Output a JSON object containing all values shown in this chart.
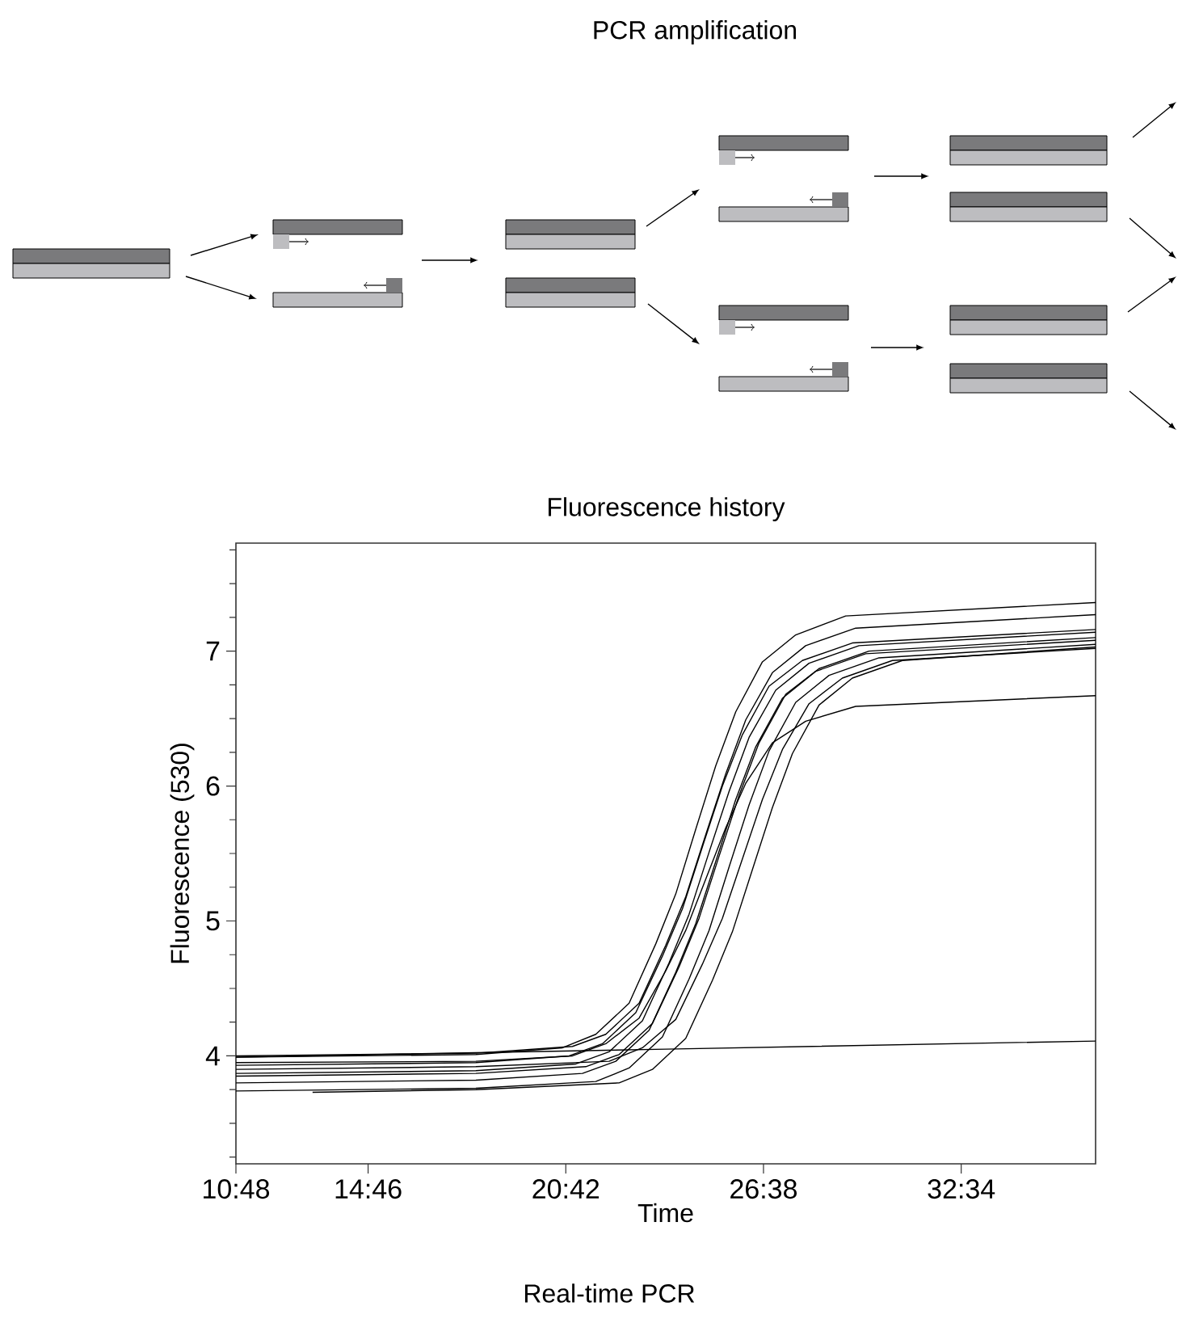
{
  "chart_data": {
    "type": "line",
    "title": "Fluorescence history",
    "xlabel": "Time",
    "ylabel": "Fluorescence (530)",
    "annotations": [
      "PCR amplification",
      "Real-time PCR"
    ],
    "xlim": [
      10.8,
      36.6
    ],
    "ylim": [
      3.2,
      7.8
    ],
    "xticks": [
      {
        "value": 10.8,
        "label": "10:48"
      },
      {
        "value": 14.767,
        "label": "14:46"
      },
      {
        "value": 20.7,
        "label": "20:42"
      },
      {
        "value": 26.633,
        "label": "26:38"
      },
      {
        "value": 32.567,
        "label": "32:34"
      }
    ],
    "yticks": [
      4,
      5,
      6,
      7
    ],
    "marker": "none",
    "line_style": "solid",
    "series": [
      {
        "color": "#000000",
        "x": [
          10.8,
          18,
          20.6,
          21.6,
          22.6,
          23.4,
          24,
          24.6,
          25.2,
          25.8,
          26.6,
          27.6,
          29.1,
          36.6
        ],
        "values": [
          3.99,
          4.01,
          4.06,
          4.16,
          4.39,
          4.83,
          5.2,
          5.68,
          6.15,
          6.55,
          6.92,
          7.12,
          7.26,
          7.36
        ]
      },
      {
        "color": "#000000",
        "x": [
          10.8,
          18,
          20.9,
          21.9,
          22.9,
          23.7,
          24.3,
          24.9,
          25.5,
          26.1,
          26.9,
          27.9,
          29.4,
          36.6
        ],
        "values": [
          4.0,
          4.02,
          4.07,
          4.16,
          4.39,
          4.82,
          5.18,
          5.64,
          6.09,
          6.49,
          6.84,
          7.04,
          7.17,
          7.27
        ]
      },
      {
        "color": "#000000",
        "x": [
          10.8,
          18,
          20.8,
          21.8,
          22.8,
          23.6,
          24.2,
          24.8,
          25.4,
          26.0,
          26.8,
          27.8,
          29.3,
          36.6
        ],
        "values": [
          3.93,
          3.95,
          4.0,
          4.09,
          4.32,
          4.74,
          5.09,
          5.55,
          6.0,
          6.38,
          6.74,
          6.93,
          7.06,
          7.16
        ]
      },
      {
        "color": "#000000",
        "x": [
          10.8,
          18,
          21,
          22,
          23,
          23.8,
          24.4,
          25,
          25.6,
          26.2,
          27,
          28,
          29.5,
          36.6
        ],
        "values": [
          3.87,
          3.89,
          3.94,
          4.03,
          4.26,
          4.69,
          5.05,
          5.51,
          5.96,
          6.36,
          6.71,
          6.91,
          7.04,
          7.14
        ]
      },
      {
        "color": "#000000",
        "x": [
          10.8,
          18,
          21.3,
          22.3,
          23.3,
          24.1,
          24.7,
          25.3,
          25.9,
          26.5,
          27.3,
          28.3,
          29.8,
          36.6
        ],
        "values": [
          3.85,
          3.87,
          3.92,
          4.01,
          4.24,
          4.66,
          5.02,
          5.48,
          5.93,
          6.32,
          6.68,
          6.87,
          7.0,
          7.1
        ]
      },
      {
        "color": "#000000",
        "x": [
          10.8,
          18,
          21.2,
          22.2,
          23.2,
          24,
          24.6,
          25.2,
          25.8,
          26.4,
          27.2,
          28.2,
          29.7,
          36.6
        ],
        "values": [
          3.8,
          3.82,
          3.87,
          3.96,
          4.19,
          4.62,
          4.98,
          5.44,
          5.9,
          6.29,
          6.65,
          6.85,
          6.98,
          7.08
        ]
      },
      {
        "color": "#000000",
        "x": [
          10.8,
          18,
          21.6,
          22.6,
          23.6,
          24.4,
          25,
          25.6,
          26.2,
          26.8,
          27.6,
          28.6,
          30.1,
          36.6
        ],
        "values": [
          3.74,
          3.76,
          3.81,
          3.91,
          4.14,
          4.57,
          4.93,
          5.4,
          5.86,
          6.26,
          6.62,
          6.82,
          6.95,
          7.05
        ]
      },
      {
        "color": "#000000",
        "x": [
          13.1,
          18,
          22.3,
          23.3,
          24.3,
          25.1,
          25.7,
          26.3,
          26.9,
          27.5,
          28.3,
          29.3,
          30.8,
          36.6
        ],
        "values": [
          3.73,
          3.75,
          3.8,
          3.9,
          4.13,
          4.56,
          4.92,
          5.38,
          5.84,
          6.24,
          6.6,
          6.8,
          6.93,
          7.03
        ]
      },
      {
        "color": "#000000",
        "x": [
          10.8,
          18,
          22,
          23,
          24,
          24.8,
          25.4,
          26,
          26.6,
          27.2,
          28,
          29,
          30.5,
          36.6
        ],
        "values": [
          3.9,
          3.92,
          3.96,
          4.06,
          4.27,
          4.68,
          5.02,
          5.46,
          5.9,
          6.27,
          6.61,
          6.8,
          6.93,
          7.02
        ]
      },
      {
        "color": "#000000",
        "x": [
          10.8,
          18,
          20.9,
          21.9,
          22.9,
          23.7,
          24.3,
          24.9,
          25.5,
          26.1,
          26.9,
          27.9,
          29.4,
          36.6
        ],
        "values": [
          3.95,
          3.96,
          4.0,
          4.09,
          4.28,
          4.63,
          4.93,
          5.31,
          5.69,
          6.02,
          6.32,
          6.48,
          6.59,
          6.67
        ]
      },
      {
        "color": "#000000",
        "x": [
          10.8,
          23.7,
          36.6
        ],
        "values": [
          3.99,
          4.05,
          4.11
        ]
      }
    ]
  }
}
